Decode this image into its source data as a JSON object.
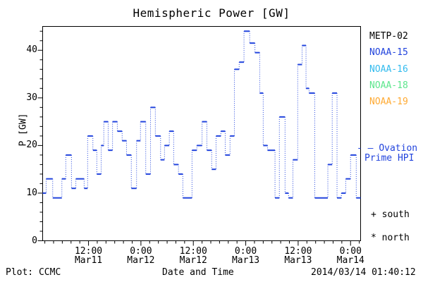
{
  "title": "Hemispheric Power [GW]",
  "axes": {
    "y_label": "P [GW]",
    "x_label": "Date and Time",
    "y_ticks": [
      0,
      10,
      20,
      30,
      40
    ],
    "y_minor_step": 2,
    "x_minor_step_hours": 2,
    "x_major_ticks": [
      {
        "hours": 12,
        "time": "12:00",
        "date": "Mar11"
      },
      {
        "hours": 24,
        "time": "0:00",
        "date": "Mar12"
      },
      {
        "hours": 36,
        "time": "12:00",
        "date": "Mar12"
      },
      {
        "hours": 48,
        "time": "0:00",
        "date": "Mar13"
      },
      {
        "hours": 60,
        "time": "12:00",
        "date": "Mar13"
      },
      {
        "hours": 72,
        "time": "0:00",
        "date": "Mar14"
      }
    ]
  },
  "legend": {
    "satellites": [
      {
        "label": "METP-02",
        "color": "#000000"
      },
      {
        "label": "NOAA-15",
        "color": "#2244DD"
      },
      {
        "label": "NOAA-16",
        "color": "#33BBEE"
      },
      {
        "label": "NOAA-18",
        "color": "#5CE68C"
      },
      {
        "label": "NOAA-19",
        "color": "#FFAA33"
      }
    ],
    "line_dash": "- —",
    "line_label1": "Ovation",
    "line_label2": "Prime HPI",
    "south_label": "+ south",
    "north_label": "* north"
  },
  "footer": {
    "left": "Plot: CCMC",
    "right": "2014/03/14 01:40:12"
  },
  "colors": {
    "curve": "#2244DD",
    "axis": "#000000",
    "background": "#ffffff"
  },
  "chart_data": {
    "type": "line",
    "style": "steps-post",
    "title": "Hemispheric Power [GW]",
    "xlabel": "Date and Time",
    "ylabel": "P [GW]",
    "series_name": "Ovation Prime HPI",
    "x_unit": "hours since 2014-03-11 00:00 UT",
    "xlim": [
      1.5,
      74.3
    ],
    "ylim": [
      0,
      45
    ],
    "grid": false,
    "legend_position": "right-outside",
    "line_color": "#2244DD",
    "steps_t_hours_gw": [
      [
        1.5,
        10
      ],
      [
        2.3,
        13
      ],
      [
        3.8,
        9
      ],
      [
        5.9,
        13
      ],
      [
        6.8,
        18
      ],
      [
        8.1,
        11
      ],
      [
        9.1,
        13
      ],
      [
        11.0,
        11
      ],
      [
        11.8,
        22
      ],
      [
        13.0,
        19
      ],
      [
        13.9,
        14
      ],
      [
        14.9,
        20
      ],
      [
        15.5,
        25
      ],
      [
        16.5,
        19
      ],
      [
        17.5,
        25
      ],
      [
        18.6,
        23
      ],
      [
        19.7,
        21
      ],
      [
        20.7,
        18
      ],
      [
        21.8,
        11
      ],
      [
        23.0,
        21
      ],
      [
        23.9,
        25
      ],
      [
        25.1,
        14
      ],
      [
        26.2,
        28
      ],
      [
        27.3,
        22
      ],
      [
        28.5,
        17
      ],
      [
        29.4,
        20
      ],
      [
        30.5,
        23
      ],
      [
        31.5,
        16
      ],
      [
        32.6,
        14
      ],
      [
        33.6,
        9
      ],
      [
        35.7,
        19
      ],
      [
        36.8,
        20
      ],
      [
        38.0,
        25
      ],
      [
        39.1,
        19
      ],
      [
        40.2,
        15
      ],
      [
        41.2,
        22
      ],
      [
        42.3,
        23
      ],
      [
        43.3,
        18
      ],
      [
        44.4,
        22
      ],
      [
        45.4,
        36
      ],
      [
        46.5,
        37.5
      ],
      [
        47.6,
        44
      ],
      [
        48.9,
        41.5
      ],
      [
        50.1,
        39.5
      ],
      [
        51.2,
        31
      ],
      [
        52.0,
        20
      ],
      [
        53.0,
        19
      ],
      [
        54.7,
        9
      ],
      [
        55.7,
        26
      ],
      [
        57.0,
        10
      ],
      [
        57.8,
        9
      ],
      [
        58.8,
        17
      ],
      [
        59.9,
        37
      ],
      [
        60.9,
        41
      ],
      [
        61.8,
        32
      ],
      [
        62.5,
        31
      ],
      [
        63.8,
        9
      ],
      [
        66.8,
        16
      ],
      [
        67.8,
        31
      ],
      [
        68.9,
        9
      ],
      [
        69.9,
        10
      ],
      [
        70.9,
        13
      ],
      [
        72.0,
        18
      ],
      [
        73.3,
        9
      ]
    ]
  }
}
